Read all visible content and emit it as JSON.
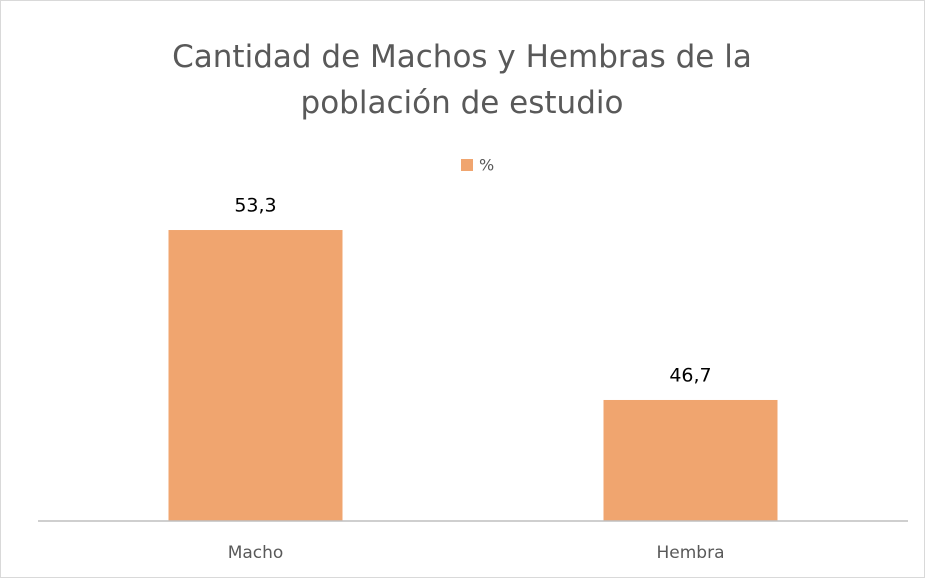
{
  "chart_data": {
    "type": "bar",
    "title": "Cantidad de Machos y Hembras de la población de estudio",
    "categories": [
      "Macho",
      "Hembra"
    ],
    "series": [
      {
        "name": "%",
        "color": "#f0a56f",
        "values": [
          53.3,
          46.7
        ],
        "value_labels": [
          "53,3",
          "46,7"
        ]
      }
    ],
    "ylim": [
      42,
      54
    ],
    "legend": "top"
  }
}
